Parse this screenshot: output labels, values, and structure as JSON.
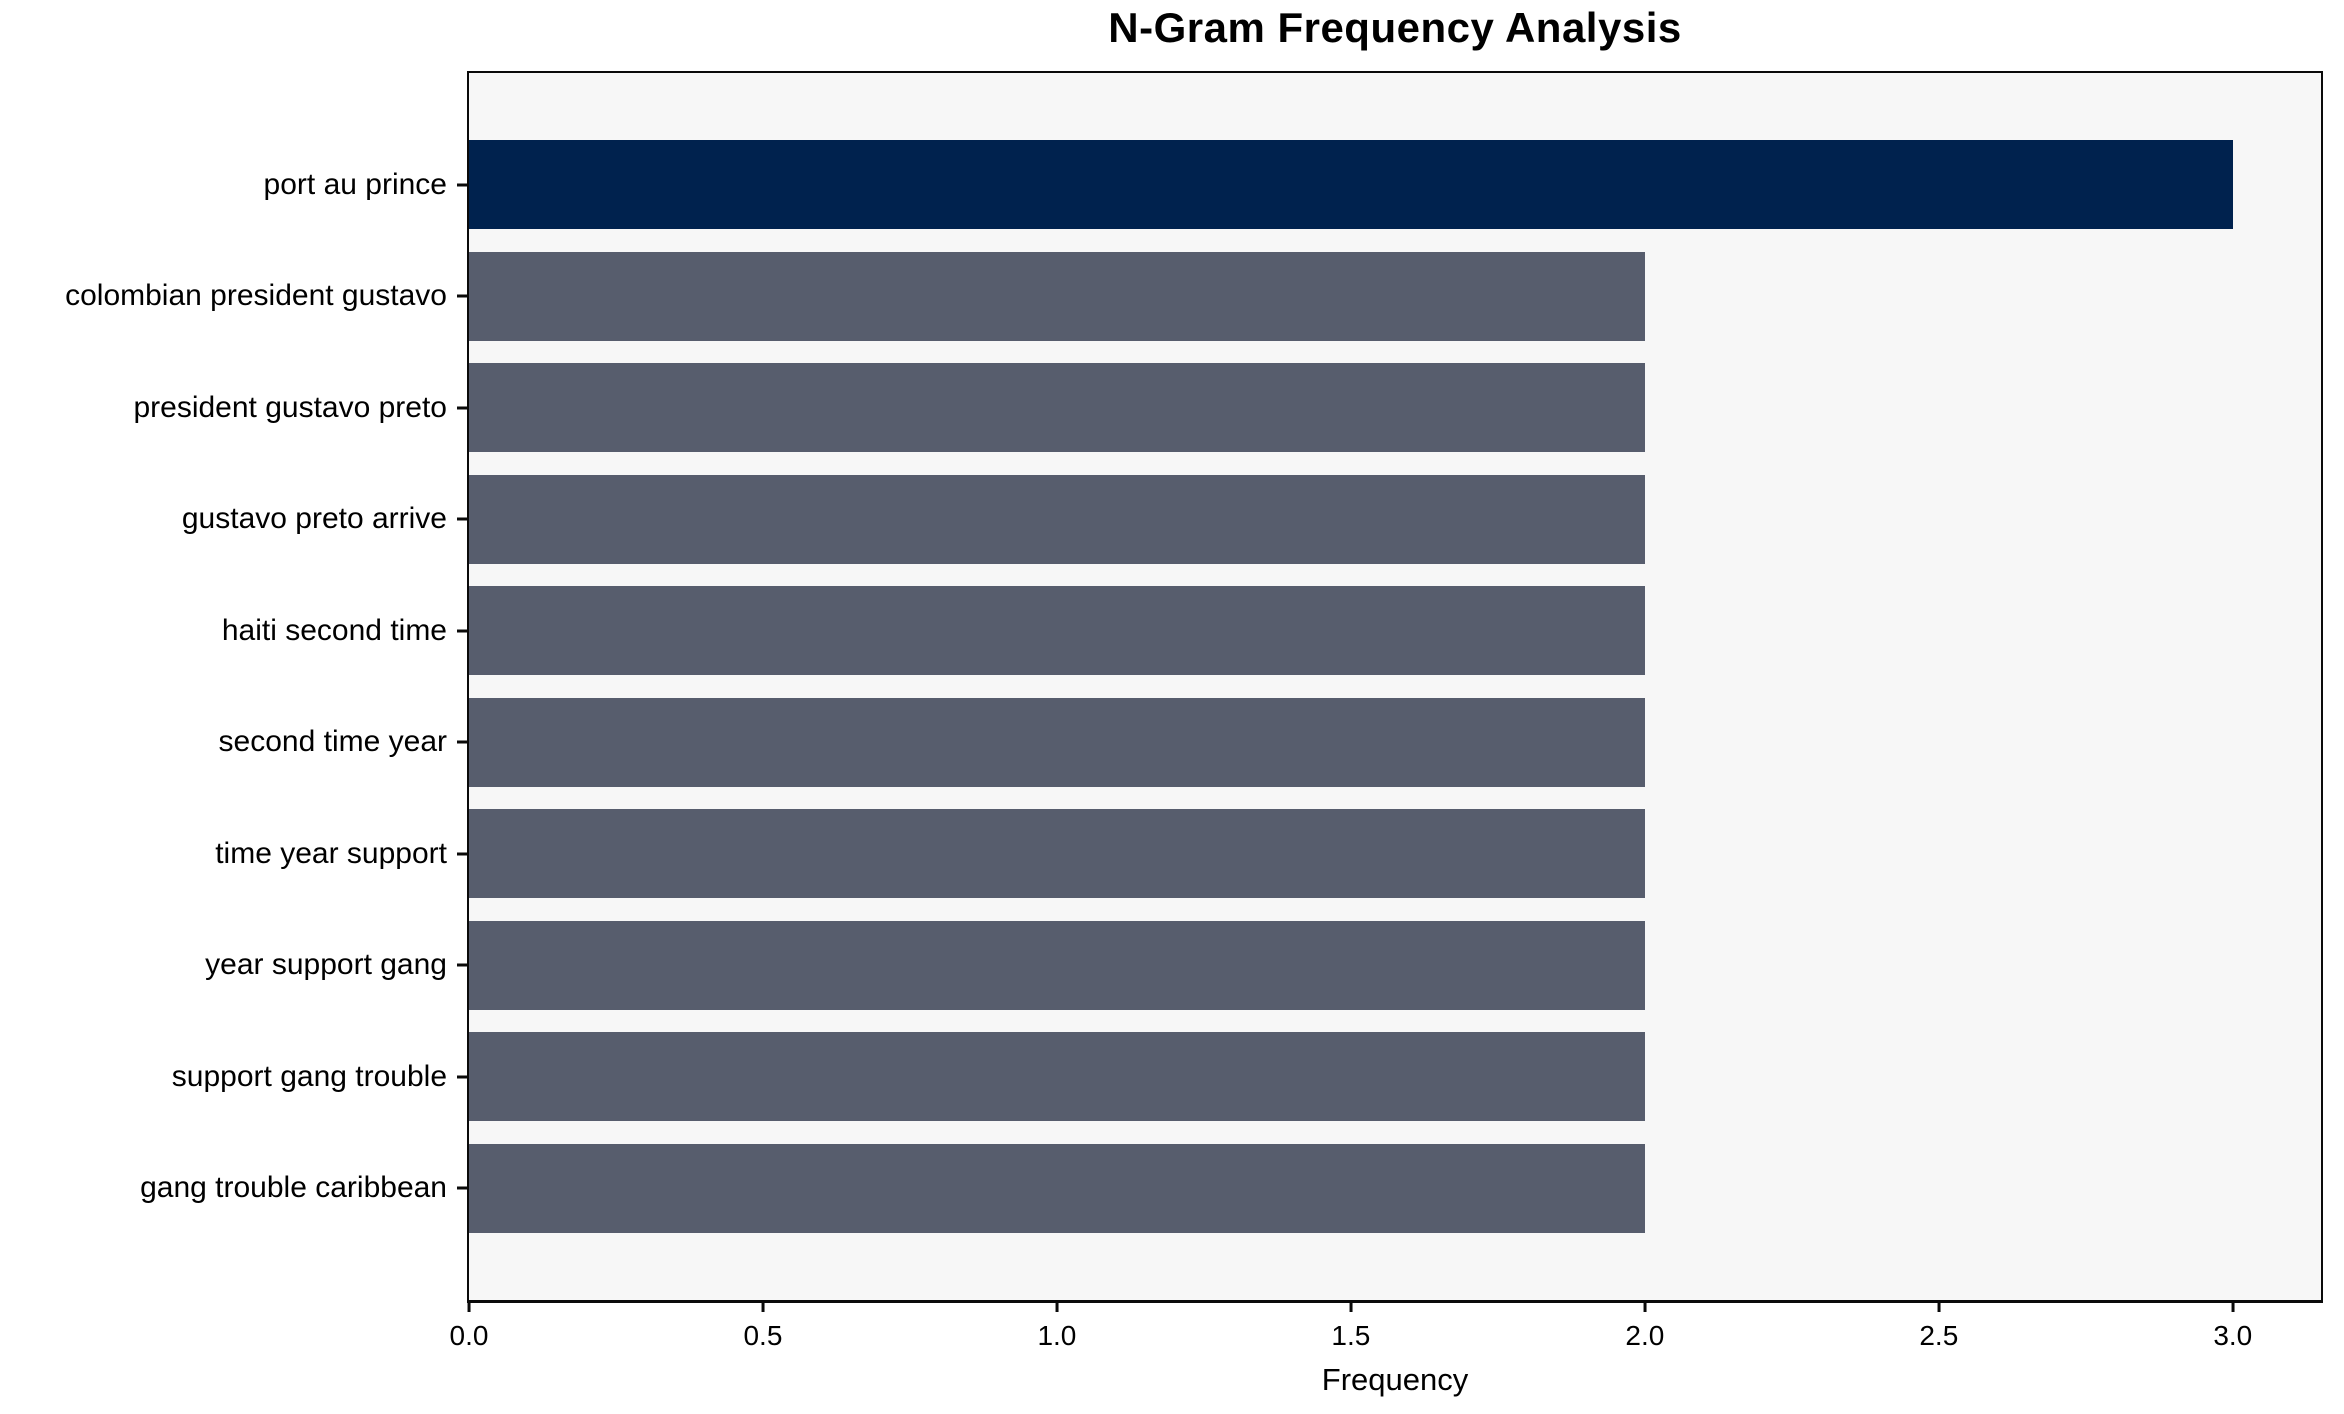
{
  "title": "N-Gram Frequency Analysis",
  "chart_data": {
    "type": "bar",
    "orientation": "horizontal",
    "title": "N-Gram Frequency Analysis",
    "xlabel": "Frequency",
    "ylabel": "",
    "categories": [
      "port au prince",
      "colombian president gustavo",
      "president gustavo preto",
      "gustavo preto arrive",
      "haiti second time",
      "second time year",
      "time year support",
      "year support gang",
      "support gang trouble",
      "gang trouble caribbean"
    ],
    "values": [
      3,
      2,
      2,
      2,
      2,
      2,
      2,
      2,
      2,
      2
    ],
    "bar_colors": [
      "#00224E",
      "#575D6D",
      "#575D6D",
      "#575D6D",
      "#575D6D",
      "#575D6D",
      "#575D6D",
      "#575D6D",
      "#575D6D",
      "#575D6D"
    ],
    "xlim": [
      0,
      3.15
    ],
    "xticks": [
      0.0,
      0.5,
      1.0,
      1.5,
      2.0,
      2.5,
      3.0
    ],
    "xtick_labels": [
      "0.0",
      "0.5",
      "1.0",
      "1.5",
      "2.0",
      "2.5",
      "3.0"
    ],
    "grid": false,
    "legend": null,
    "colors": {
      "highlight_bar": "#00224E",
      "default_bar": "#575D6D",
      "plot_background": "#F7F7F7",
      "figure_background": "#FFFFFF",
      "spine": "#0A0A0A",
      "text": "#000000"
    }
  }
}
